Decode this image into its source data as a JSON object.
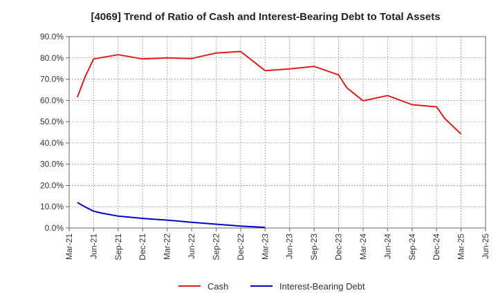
{
  "chart_data": {
    "type": "line",
    "title": "[4069]  Trend of Ratio of Cash and Interest-Bearing Debt to Total Assets",
    "xlabel": "",
    "ylabel": "",
    "ylim": [
      0,
      90
    ],
    "yticks": [
      "0.0%",
      "10.0%",
      "20.0%",
      "30.0%",
      "40.0%",
      "50.0%",
      "60.0%",
      "70.0%",
      "80.0%",
      "90.0%"
    ],
    "x_ticks": [
      "Mar-21",
      "Jun-21",
      "Sep-21",
      "Dec-21",
      "Mar-22",
      "Jun-22",
      "Sep-22",
      "Dec-22",
      "Mar-23",
      "Jun-23",
      "Sep-23",
      "Dec-23",
      "Mar-24",
      "Jun-24",
      "Sep-24",
      "Dec-24",
      "Mar-25",
      "Jun-25"
    ],
    "grid": true,
    "legend_position": "bottom",
    "series": [
      {
        "name": "Cash",
        "color": "#e31a1c",
        "x": [
          "Apr-21",
          "May-21",
          "Jun-21",
          "Sep-21",
          "Dec-21",
          "Mar-22",
          "Jun-22",
          "Sep-22",
          "Dec-22",
          "Mar-23",
          "Jun-23",
          "Sep-23",
          "Dec-23",
          "Jan-24",
          "Mar-24",
          "Jun-24",
          "Sep-24",
          "Dec-24",
          "Jan-25",
          "Mar-25"
        ],
        "values": [
          61.5,
          71.5,
          79.5,
          81.5,
          79.5,
          80.0,
          79.7,
          82.3,
          83.0,
          74.0,
          74.8,
          76.0,
          72.0,
          66.0,
          59.8,
          62.3,
          58.0,
          57.0,
          51.5,
          44.2
        ]
      },
      {
        "name": "Interest-Bearing Debt",
        "color": "#0000cc",
        "x": [
          "Apr-21",
          "May-21",
          "Jun-21",
          "Jul-21",
          "Sep-21",
          "Dec-21",
          "Mar-22",
          "Jun-22",
          "Sep-22",
          "Dec-22",
          "Mar-23"
        ],
        "values": [
          12.0,
          9.8,
          7.9,
          7.0,
          5.6,
          4.5,
          3.7,
          2.7,
          1.8,
          0.9,
          0.3
        ]
      }
    ]
  }
}
